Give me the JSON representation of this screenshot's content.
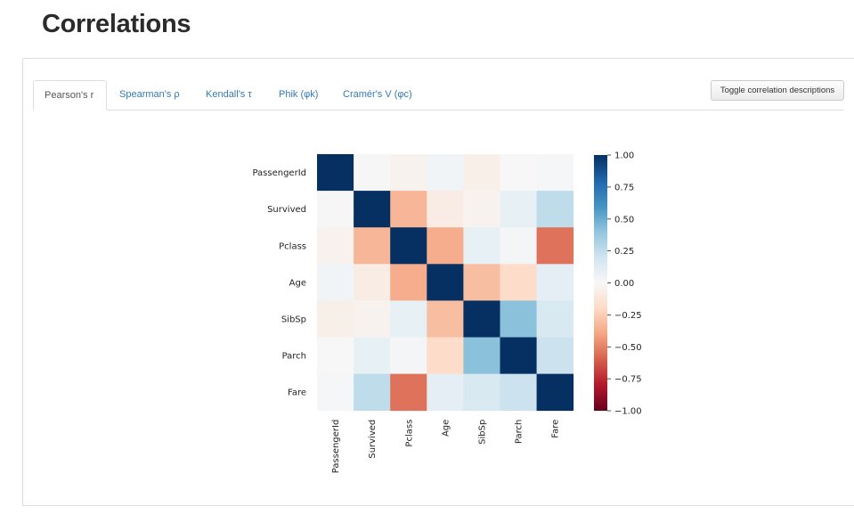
{
  "page": {
    "title": "Correlations"
  },
  "tabs": [
    {
      "label": "Pearson's r",
      "active": true
    },
    {
      "label": "Spearman's ρ",
      "active": false
    },
    {
      "label": "Kendall's τ",
      "active": false
    },
    {
      "label": "Phik (φk)",
      "active": false
    },
    {
      "label": "Cramér's V (φc)",
      "active": false
    }
  ],
  "toggle_button": {
    "label": "Toggle correlation descriptions"
  },
  "chart_data": {
    "type": "heatmap",
    "title": "",
    "rows": [
      "PassengerId",
      "Survived",
      "Pclass",
      "Age",
      "SibSp",
      "Parch",
      "Fare"
    ],
    "columns": [
      "PassengerId",
      "Survived",
      "Pclass",
      "Age",
      "SibSp",
      "Parch",
      "Fare"
    ],
    "values": [
      [
        1.0,
        -0.005,
        -0.035,
        0.037,
        -0.058,
        -0.002,
        0.013
      ],
      [
        -0.005,
        1.0,
        -0.338,
        -0.077,
        -0.035,
        0.082,
        0.257
      ],
      [
        -0.035,
        -0.338,
        1.0,
        -0.369,
        0.083,
        0.018,
        -0.549
      ],
      [
        0.037,
        -0.077,
        -0.369,
        1.0,
        -0.308,
        -0.189,
        0.096
      ],
      [
        -0.058,
        -0.035,
        0.083,
        -0.308,
        1.0,
        0.415,
        0.16
      ],
      [
        -0.002,
        0.082,
        0.018,
        -0.189,
        0.415,
        1.0,
        0.216
      ],
      [
        0.013,
        0.257,
        -0.549,
        0.096,
        0.16,
        0.216,
        1.0
      ]
    ],
    "colorbar": {
      "range": [
        -1.0,
        1.0
      ],
      "ticks": [
        1.0,
        0.75,
        0.5,
        0.25,
        0.0,
        -0.25,
        -0.5,
        -0.75,
        -1.0
      ],
      "tick_labels": [
        "1.00",
        "0.75",
        "0.50",
        "0.25",
        "0.00",
        "−0.25",
        "−0.50",
        "−0.75",
        "−1.00"
      ],
      "colormap": "RdBu"
    }
  }
}
